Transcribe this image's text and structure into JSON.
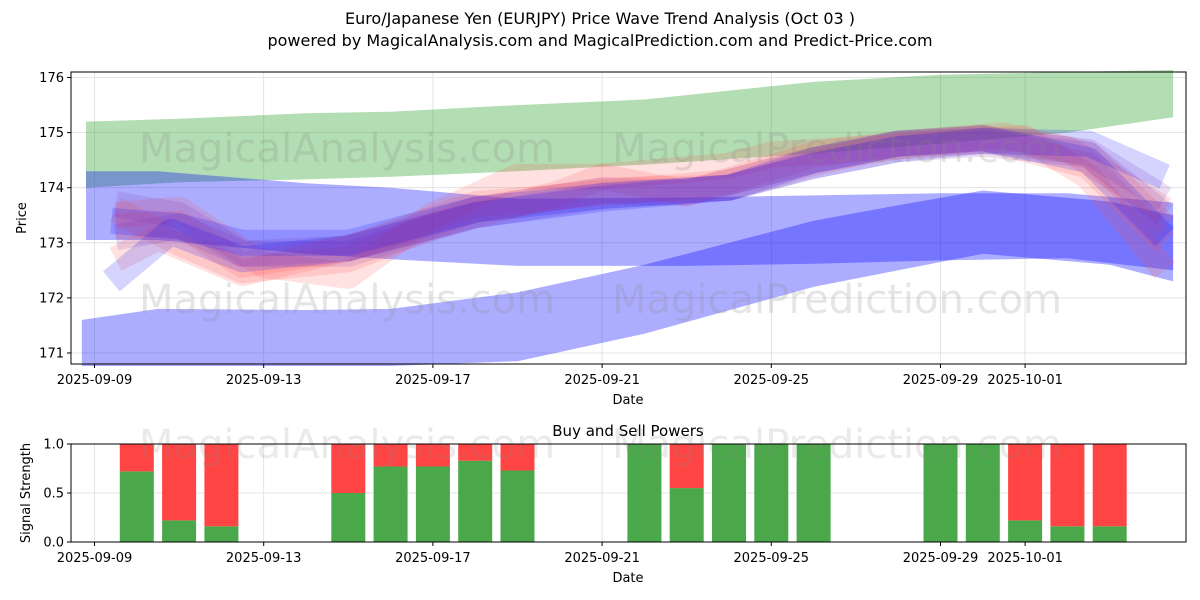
{
  "title_line1": "Euro/Japanese Yen (EURJPY) Price Wave Trend Analysis (Oct 03 )",
  "title_line2": "powered by MagicalAnalysis.com and MagicalPrediction.com and Predict-Price.com",
  "watermarks": [
    "MagicalAnalysis.com",
    "MagicalPrediction.com"
  ],
  "colors": {
    "green_band": "#2ca02c",
    "blue_band": "#0000ff",
    "red_band": "#ff4d4d",
    "buy": "#4aa84a",
    "sell": "#ff4444"
  },
  "chart_data": [
    {
      "type": "area",
      "title": "",
      "xlabel": "Date",
      "ylabel": "Price",
      "x_ticks": [
        "2025-09-09",
        "2025-09-13",
        "2025-09-17",
        "2025-09-21",
        "2025-09-25",
        "2025-09-29",
        "2025-10-01"
      ],
      "y_ticks": [
        171,
        172,
        173,
        174,
        175,
        176
      ],
      "xlim_days": [
        -0.6,
        25.8
      ],
      "ylim": [
        170.8,
        176.1
      ],
      "x_origin": "2025-09-09",
      "bands": [
        {
          "name": "green upper band",
          "color": "green",
          "x": [
            -0.2,
            2,
            5,
            7,
            10,
            13,
            17,
            20,
            23,
            25.5
          ],
          "upper": [
            175.2,
            175.25,
            175.35,
            175.38,
            175.5,
            175.6,
            175.92,
            176.05,
            176.1,
            176.15
          ],
          "lower": [
            174.0,
            174.1,
            174.15,
            174.2,
            174.3,
            174.42,
            174.62,
            174.8,
            175.0,
            175.28
          ]
        },
        {
          "name": "blue upper band",
          "color": "blue",
          "x": [
            -0.2,
            1.5,
            5,
            7,
            10,
            14,
            17,
            20,
            23,
            25.5
          ],
          "upper": [
            174.3,
            174.3,
            174.08,
            174.0,
            173.8,
            173.82,
            173.86,
            173.9,
            173.9,
            173.73
          ],
          "lower": [
            173.05,
            173.05,
            172.8,
            172.7,
            172.58,
            172.58,
            172.62,
            172.68,
            172.72,
            172.5
          ]
        },
        {
          "name": "blue lower band",
          "color": "blue",
          "x": [
            -0.3,
            1.5,
            5,
            7,
            10,
            13,
            17,
            19,
            21,
            24,
            25.5
          ],
          "upper": [
            171.6,
            171.8,
            171.78,
            171.8,
            172.1,
            172.6,
            173.4,
            173.68,
            173.95,
            173.75,
            173.5
          ],
          "lower": [
            170.6,
            170.6,
            170.6,
            170.6,
            170.85,
            171.35,
            172.2,
            172.5,
            172.8,
            172.6,
            172.3
          ]
        }
      ],
      "series": [
        {
          "name": "red wave 1",
          "color": "red",
          "x": [
            0.5,
            1.5,
            3.5,
            6,
            9,
            11,
            12,
            15,
            16,
            20,
            22,
            23.5,
            25.3
          ],
          "values": [
            172.7,
            173.1,
            172.45,
            172.9,
            173.5,
            173.9,
            174.2,
            174.4,
            174.6,
            174.8,
            174.9,
            174.2,
            172.5
          ]
        },
        {
          "name": "red wave 2",
          "color": "red",
          "x": [
            0.5,
            2,
            3.5,
            6,
            9,
            12,
            15,
            17,
            19,
            21,
            23.5,
            25.3
          ],
          "values": [
            173.3,
            173.35,
            172.6,
            172.9,
            173.7,
            173.9,
            174.1,
            174.5,
            174.75,
            174.9,
            174.4,
            173.0
          ]
        },
        {
          "name": "red wave 3",
          "color": "red",
          "x": [
            0.5,
            2,
            3.5,
            6,
            9,
            12,
            15,
            17,
            19,
            21.5,
            23.5,
            25.3
          ],
          "values": [
            173.6,
            173.0,
            172.5,
            172.7,
            173.6,
            173.95,
            174.0,
            174.45,
            174.8,
            174.95,
            174.6,
            173.3
          ]
        },
        {
          "name": "pink wave 4",
          "color": "red",
          "x": [
            0.5,
            2,
            4,
            6,
            8,
            10,
            12,
            14,
            17,
            19,
            21,
            23,
            25.3
          ],
          "values": [
            173.5,
            173.6,
            172.6,
            172.4,
            173.5,
            174.2,
            174.2,
            173.9,
            174.6,
            174.8,
            174.9,
            174.7,
            173.6
          ]
        },
        {
          "name": "purple wave 1",
          "color": "purple",
          "x": [
            0.5,
            2,
            3.5,
            6,
            9,
            12,
            15,
            17,
            19,
            21,
            23.5,
            25.3
          ],
          "values": [
            173.1,
            173.3,
            172.8,
            172.8,
            173.5,
            173.85,
            174.0,
            174.4,
            174.7,
            174.8,
            174.6,
            173.5
          ]
        },
        {
          "name": "purple wave 2",
          "color": "purple",
          "x": [
            0.5,
            2,
            3.5,
            6,
            9,
            12,
            14,
            17,
            19,
            21,
            23.5,
            25.3
          ],
          "values": [
            173.7,
            173.5,
            172.8,
            172.9,
            173.6,
            173.95,
            173.9,
            174.5,
            174.8,
            174.85,
            174.65,
            173.8
          ]
        },
        {
          "name": "lavender wave 3",
          "color": "blue",
          "x": [
            0.4,
            1.8,
            3.5,
            6,
            9,
            12,
            15,
            17,
            19,
            21,
            23.5,
            25.3
          ],
          "values": [
            172.3,
            173.2,
            172.7,
            172.9,
            173.5,
            173.8,
            174.0,
            174.4,
            174.7,
            174.85,
            174.8,
            174.2
          ]
        },
        {
          "name": "lavender wave 4",
          "color": "blue",
          "x": [
            0.4,
            2,
            3.5,
            6,
            9,
            12,
            15,
            17,
            19,
            21,
            23.5,
            25.3
          ],
          "values": [
            173.4,
            173.3,
            173.0,
            173.0,
            173.6,
            173.85,
            174.0,
            174.5,
            174.8,
            174.9,
            174.5,
            173.1
          ]
        }
      ]
    },
    {
      "type": "bar",
      "title": "Buy and Sell Powers",
      "xlabel": "Date",
      "ylabel": "Signal Strength",
      "x_ticks": [
        "2025-09-09",
        "2025-09-13",
        "2025-09-17",
        "2025-09-21",
        "2025-09-25",
        "2025-09-29",
        "2025-10-01"
      ],
      "y_ticks": [
        0.0,
        0.5,
        1.0
      ],
      "y_tick_labels": [
        "0.0",
        "0.5",
        "1.0"
      ],
      "ylim": [
        0,
        1
      ],
      "categories": [
        "2025-09-10",
        "2025-09-11",
        "2025-09-12",
        "2025-09-15",
        "2025-09-16",
        "2025-09-17",
        "2025-09-18",
        "2025-09-19",
        "2025-09-22",
        "2025-09-23",
        "2025-09-24",
        "2025-09-25",
        "2025-09-26",
        "2025-09-29",
        "2025-09-30",
        "2025-10-01",
        "2025-10-02",
        "2025-10-03"
      ],
      "day_offsets": [
        1,
        2,
        3,
        6,
        7,
        8,
        9,
        10,
        13,
        14,
        15,
        16,
        17,
        20,
        21,
        22,
        23,
        24
      ],
      "series": [
        {
          "name": "Buy",
          "color": "green",
          "values": [
            0.72,
            0.22,
            0.16,
            0.5,
            0.77,
            0.77,
            0.83,
            0.73,
            1.0,
            0.55,
            1.0,
            1.0,
            1.0,
            1.0,
            1.0,
            0.22,
            0.16,
            0.16
          ]
        },
        {
          "name": "Sell",
          "color": "red",
          "values": [
            0.28,
            0.78,
            0.84,
            0.5,
            0.23,
            0.23,
            0.17,
            0.27,
            0.0,
            0.45,
            0.0,
            0.0,
            0.0,
            0.0,
            0.0,
            0.78,
            0.84,
            0.84
          ]
        }
      ]
    }
  ]
}
